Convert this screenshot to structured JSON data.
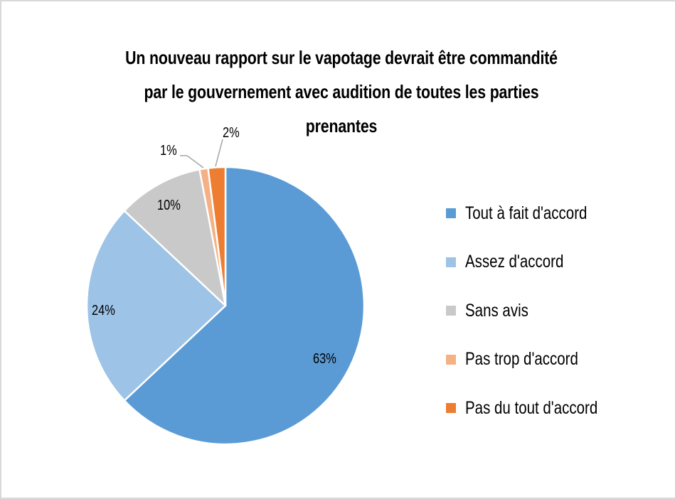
{
  "chart_data": {
    "type": "pie",
    "title": "Un nouveau rapport sur le vapotage devrait être commandité par le gouvernement avec audition de toutes les parties prenantes",
    "title_lines": [
      "Un nouveau rapport sur le vapotage devrait être commandité",
      "par le gouvernement avec audition de toutes les parties",
      "prenantes"
    ],
    "categories": [
      "Tout à fait d'accord",
      "Assez d'accord",
      "Sans avis",
      "Pas trop d'accord",
      "Pas du tout d'accord"
    ],
    "values": [
      63,
      24,
      10,
      1,
      2
    ],
    "data_labels": [
      "63%",
      "24%",
      "10%",
      "1%",
      "2%"
    ],
    "colors": [
      "#5b9bd5",
      "#9dc3e6",
      "#c9c9c9",
      "#f4b183",
      "#ed7d31"
    ],
    "legend_position": "right",
    "start_angle_deg": 0,
    "direction": "clockwise"
  }
}
